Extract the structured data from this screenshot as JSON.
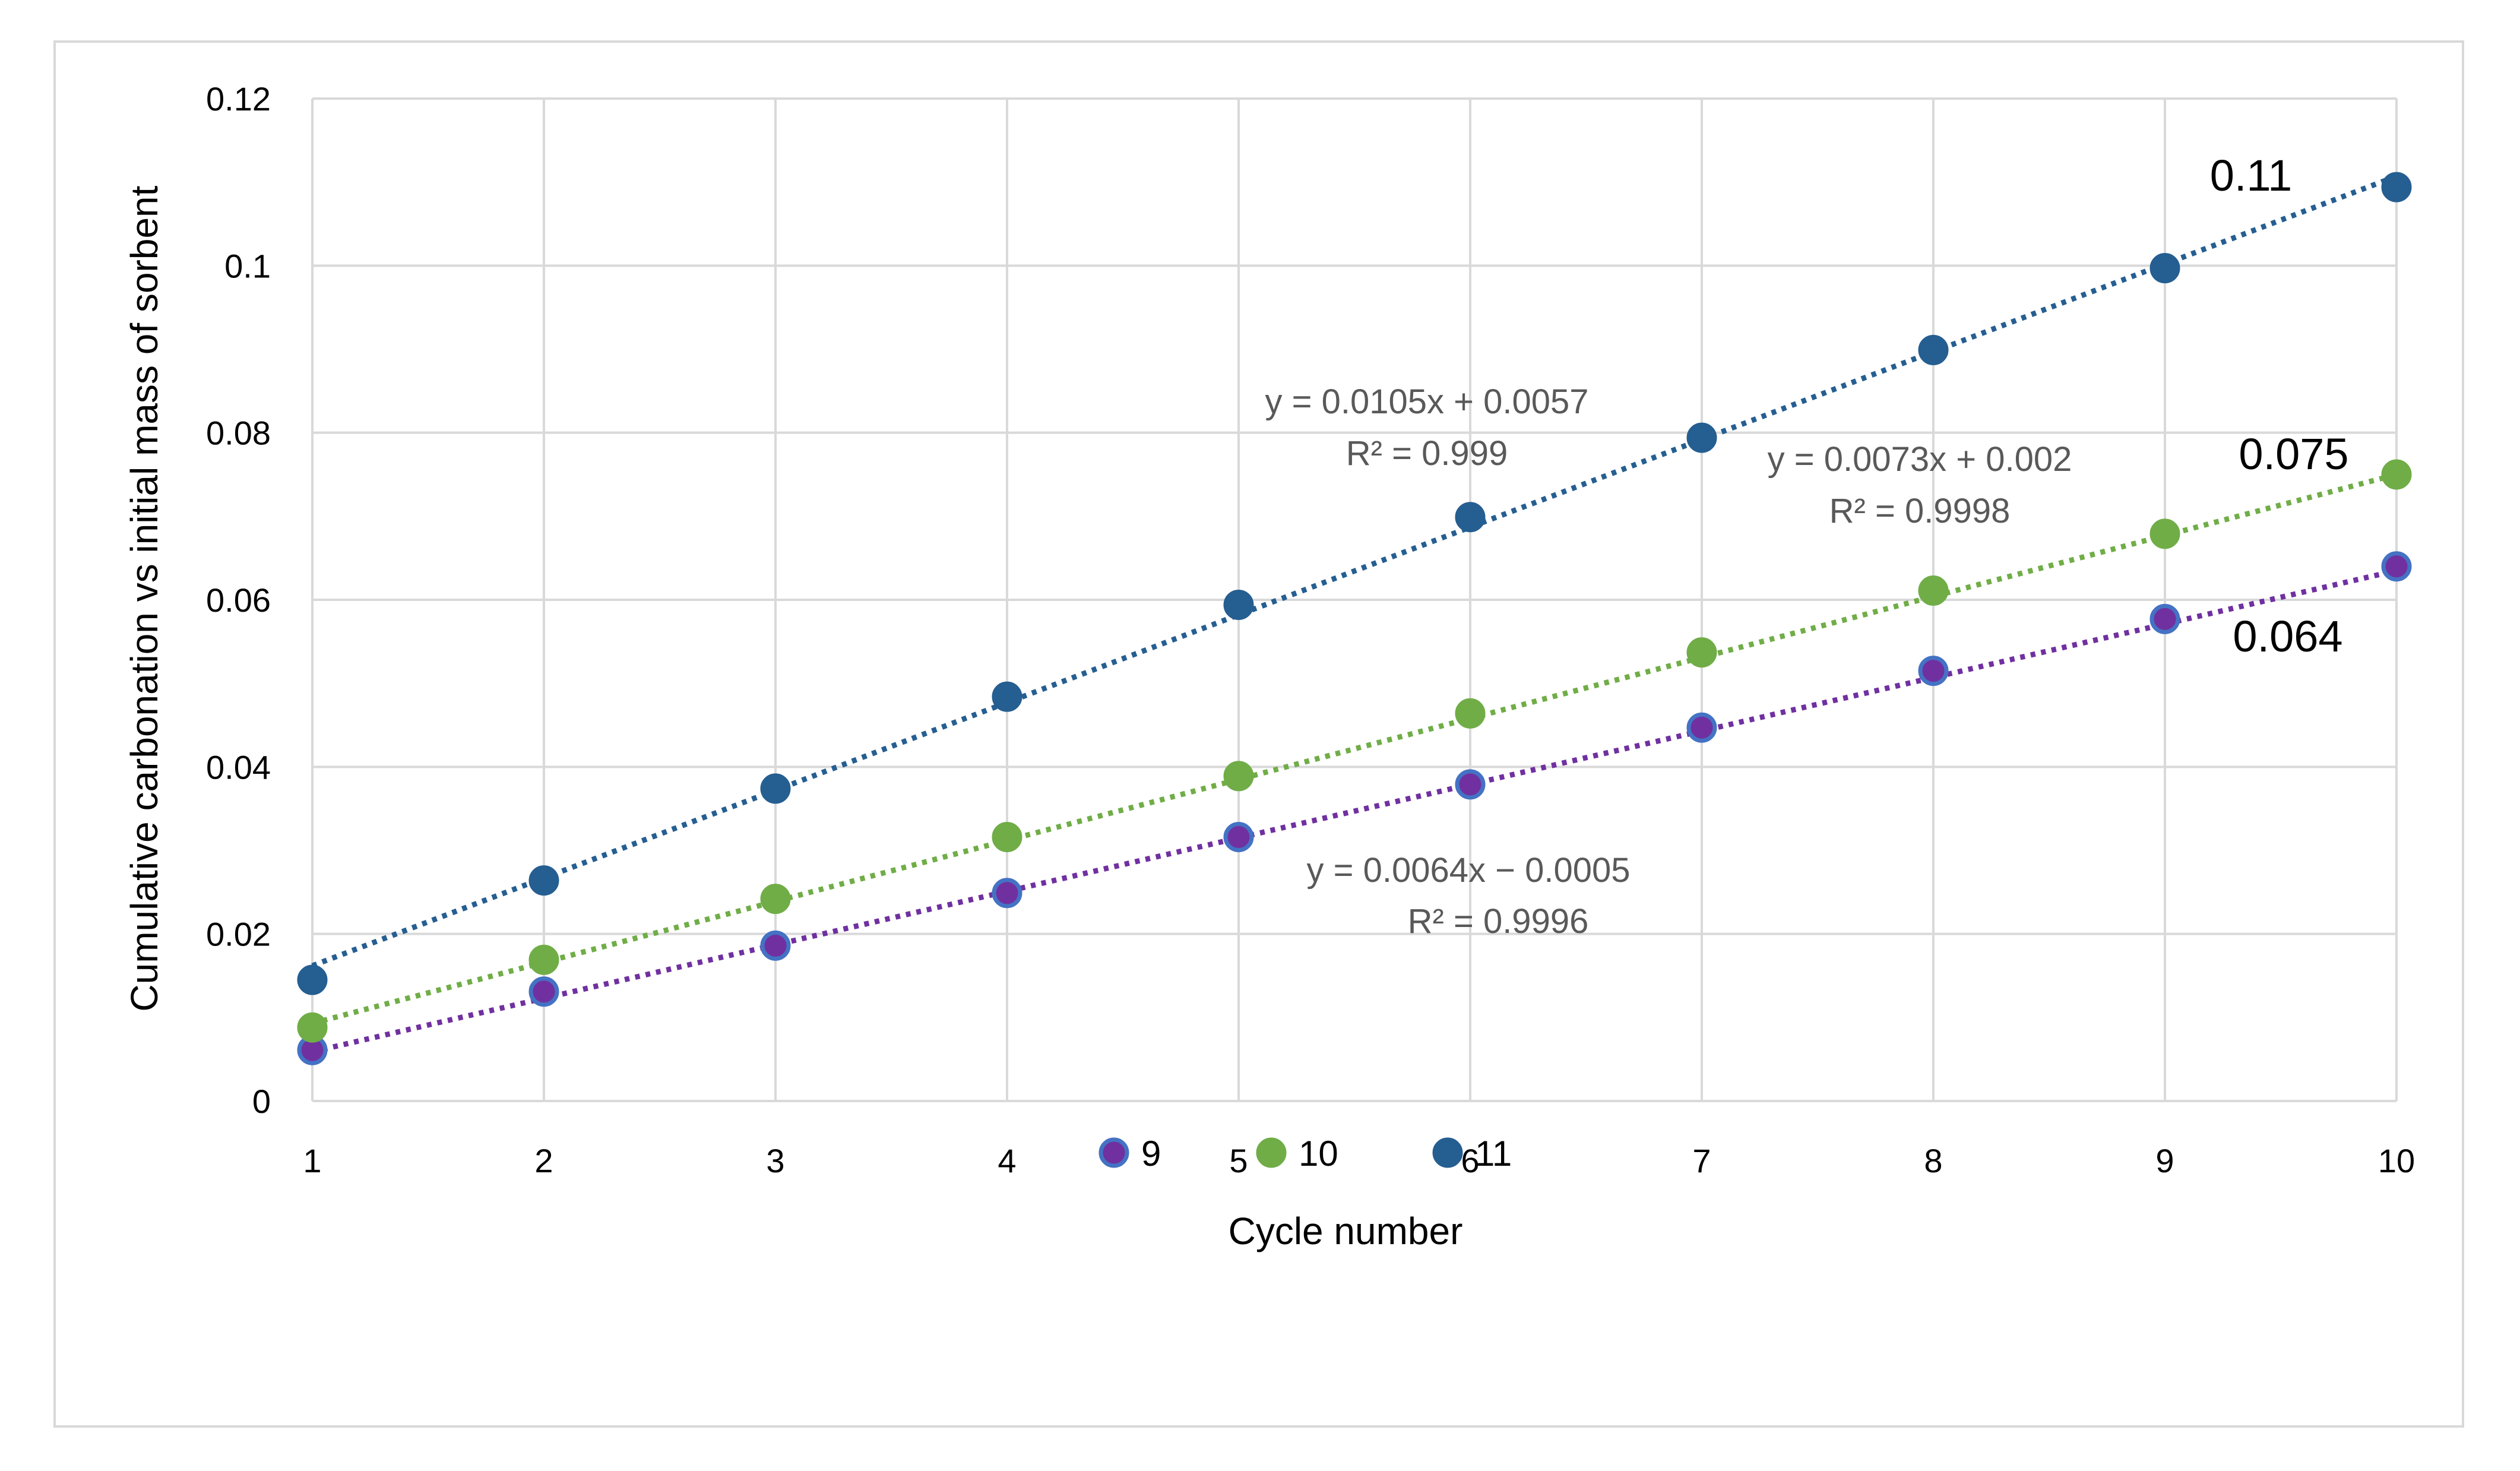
{
  "chart_data": {
    "type": "scatter",
    "title": "",
    "xlabel": "Cycle number",
    "ylabel": "Cumulative carbonation vs initial mass of sorbent",
    "xlim": [
      1,
      10
    ],
    "ylim": [
      0,
      0.12
    ],
    "x_ticks": [
      "1",
      "2",
      "3",
      "4",
      "5",
      "6",
      "7",
      "8",
      "9",
      "10"
    ],
    "y_ticks": [
      "0",
      "0.02",
      "0.04",
      "0.06",
      "0.08",
      "0.1",
      "0.12"
    ],
    "y_tick_values": [
      0,
      0.02,
      0.04,
      0.06,
      0.08,
      0.1,
      0.12
    ],
    "grid": true,
    "legend_position": "bottom",
    "x": [
      1,
      2,
      3,
      4,
      5,
      6,
      7,
      8,
      9,
      10
    ],
    "series": [
      {
        "name": "9",
        "color": "#7030a0",
        "edge_color": "#4472c4",
        "values": [
          0.0061,
          0.0131,
          0.0186,
          0.0249,
          0.0316,
          0.0379,
          0.0447,
          0.0515,
          0.0577,
          0.064
        ],
        "trendline": {
          "slope": 0.0064,
          "intercept": -0.0005,
          "equation": "y = 0.0064x − 0.0005",
          "r2": "R² = 0.9996"
        },
        "end_label": "0.064"
      },
      {
        "name": "10",
        "color": "#70ad47",
        "edge_color": "#70ad47",
        "values": [
          0.0088,
          0.0169,
          0.0242,
          0.0316,
          0.0389,
          0.0464,
          0.0537,
          0.0611,
          0.0679,
          0.075
        ],
        "trendline": {
          "slope": 0.0073,
          "intercept": 0.002,
          "equation": "y = 0.0073x + 0.002",
          "r2": "R² = 0.9998"
        },
        "end_label": "0.075"
      },
      {
        "name": "11",
        "color": "#255e91",
        "edge_color": "#255e91",
        "values": [
          0.0145,
          0.0264,
          0.0374,
          0.0484,
          0.0594,
          0.0699,
          0.0794,
          0.0899,
          0.0997,
          0.1094
        ],
        "trendline": {
          "slope": 0.0105,
          "intercept": 0.0057,
          "equation": "y = 0.0105x + 0.0057",
          "r2": "R² = 0.999"
        },
        "end_label": "0.11"
      }
    ],
    "colors": {
      "grid": "#d9d9d9",
      "text": "#000000",
      "annotation": "#595959",
      "frame": "#d9d9d9"
    }
  }
}
